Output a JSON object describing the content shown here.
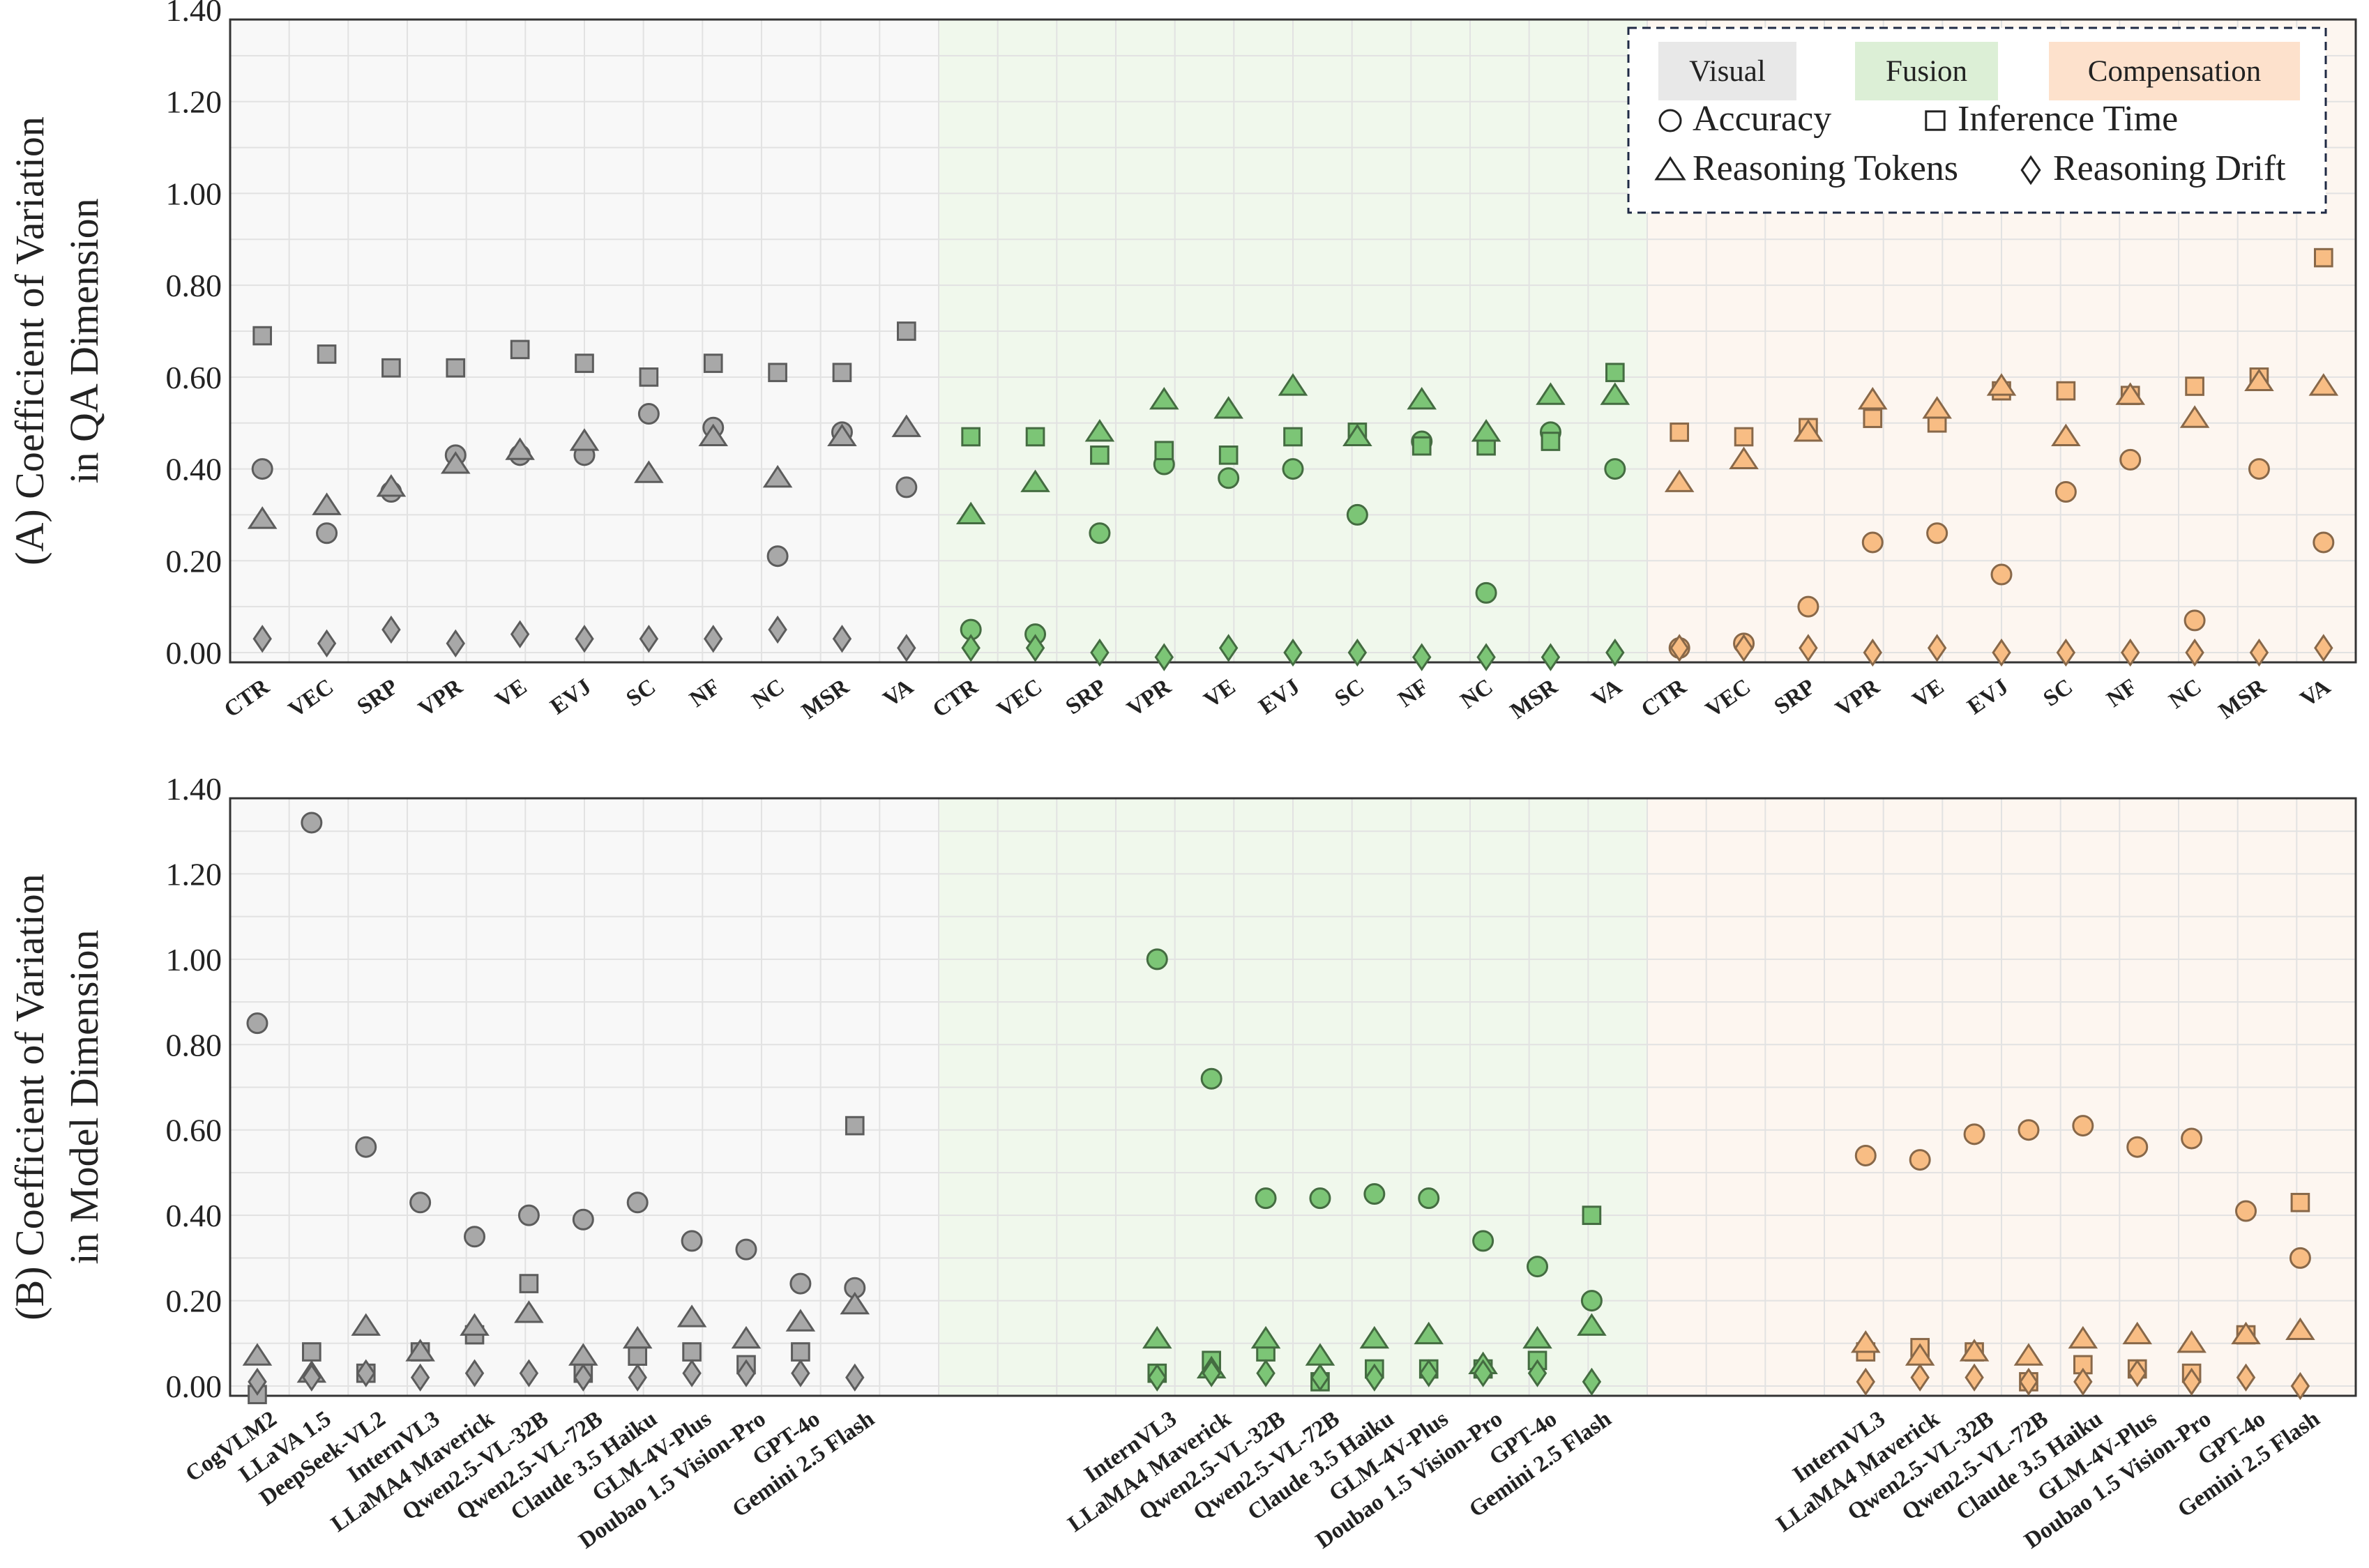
{
  "chart_data": [
    {
      "type": "scatter",
      "panel": "A",
      "ylabel_line1": "(A) Coefficient of Variation",
      "ylabel_line2": "in QA Dimension",
      "ylim": [
        0,
        1.4
      ],
      "yticks": [
        "0.00",
        "0.20",
        "0.40",
        "0.60",
        "0.80",
        "1.00",
        "1.20",
        "1.40"
      ],
      "groups": [
        {
          "name": "Visual",
          "color": "#a8a8a8",
          "bg": "#f8f8f8",
          "categories": [
            "CTR",
            "VEC",
            "SRP",
            "VPR",
            "VE",
            "EVJ",
            "SC",
            "NF",
            "NC",
            "MSR",
            "VA"
          ],
          "accuracy": [
            0.4,
            0.26,
            0.35,
            0.43,
            0.43,
            0.43,
            0.52,
            0.49,
            0.21,
            0.48,
            0.36
          ],
          "inference_time": [
            0.69,
            0.65,
            0.62,
            0.62,
            0.66,
            0.63,
            0.6,
            0.63,
            0.61,
            0.61,
            0.7
          ],
          "reasoning_tokens": [
            0.29,
            0.32,
            0.36,
            0.41,
            0.44,
            0.46,
            0.39,
            0.47,
            0.38,
            0.47,
            0.49
          ],
          "reasoning_drift": [
            0.03,
            0.02,
            0.05,
            0.02,
            0.04,
            0.03,
            0.03,
            0.03,
            0.05,
            0.03,
            0.01
          ]
        },
        {
          "name": "Fusion",
          "color": "#7cc576",
          "bg": "#f0f8ec",
          "categories": [
            "CTR",
            "VEC",
            "SRP",
            "VPR",
            "VE",
            "EVJ",
            "SC",
            "NF",
            "NC",
            "MSR",
            "VA"
          ],
          "accuracy": [
            0.05,
            0.04,
            0.26,
            0.41,
            0.38,
            0.4,
            0.3,
            0.46,
            0.13,
            0.48,
            0.4
          ],
          "inference_time": [
            0.47,
            0.47,
            0.43,
            0.44,
            0.43,
            0.47,
            0.48,
            0.45,
            0.45,
            0.46,
            0.61
          ],
          "reasoning_tokens": [
            0.3,
            0.37,
            0.48,
            0.55,
            0.53,
            0.58,
            0.47,
            0.55,
            0.48,
            0.56,
            0.56
          ],
          "reasoning_drift": [
            0.01,
            0.01,
            0.0,
            -0.01,
            0.01,
            0.0,
            0.0,
            -0.01,
            -0.01,
            -0.01,
            0.0
          ]
        },
        {
          "name": "Compensation",
          "color": "#f8bd84",
          "bg": "#fdf6f0",
          "categories": [
            "CTR",
            "VEC",
            "SRP",
            "VPR",
            "VE",
            "EVJ",
            "SC",
            "NF",
            "NC",
            "MSR",
            "VA"
          ],
          "accuracy": [
            0.01,
            0.02,
            0.1,
            0.24,
            0.26,
            0.17,
            0.35,
            0.42,
            0.07,
            0.4,
            0.24
          ],
          "inference_time": [
            0.48,
            0.47,
            0.49,
            0.51,
            0.5,
            0.57,
            0.57,
            0.56,
            0.58,
            0.6,
            0.86
          ],
          "reasoning_tokens": [
            0.37,
            0.42,
            0.48,
            0.55,
            0.53,
            0.58,
            0.47,
            0.56,
            0.51,
            0.59,
            0.58
          ],
          "reasoning_drift": [
            0.01,
            0.01,
            0.01,
            0.0,
            0.01,
            0.0,
            0.0,
            0.0,
            0.0,
            0.0,
            0.01
          ]
        }
      ]
    },
    {
      "type": "scatter",
      "panel": "B",
      "ylabel_line1": "(B) Coefficient of Variation",
      "ylabel_line2": "in Model Dimension",
      "ylim": [
        0,
        1.4
      ],
      "yticks": [
        "0.00",
        "0.20",
        "0.40",
        "0.60",
        "0.80",
        "1.00",
        "1.20",
        "1.40"
      ],
      "groups": [
        {
          "name": "Visual",
          "color": "#a8a8a8",
          "bg": "#f8f8f8",
          "categories": [
            "CogVLM2",
            "LLaVA 1.5",
            "DeepSeek-VL2",
            "InternVL3",
            "LLaMA4 Maverick",
            "Qwen2.5-VL-32B",
            "Qwen2.5-VL-72B",
            "Claude 3.5 Haiku",
            "GLM-4V-Plus",
            "Doubao 1.5 Vision-Pro",
            "GPT-4o",
            "Gemini 2.5 Flash"
          ],
          "accuracy": [
            0.85,
            1.32,
            0.56,
            0.43,
            0.35,
            0.4,
            0.39,
            0.43,
            0.34,
            0.32,
            0.24,
            0.23
          ],
          "inference_time": [
            -0.02,
            0.08,
            0.03,
            0.08,
            0.12,
            0.24,
            0.03,
            0.07,
            0.08,
            0.05,
            0.08,
            0.61
          ],
          "reasoning_tokens": [
            0.07,
            0.03,
            0.14,
            0.08,
            0.14,
            0.17,
            0.07,
            0.11,
            0.16,
            0.11,
            0.15,
            0.19
          ],
          "reasoning_drift": [
            0.01,
            0.02,
            0.03,
            0.02,
            0.03,
            0.03,
            0.02,
            0.02,
            0.03,
            0.03,
            0.03,
            0.02
          ]
        },
        {
          "name": "Fusion",
          "color": "#7cc576",
          "bg": "#f0f8ec",
          "categories": [
            "InternVL3",
            "LLaMA4 Maverick",
            "Qwen2.5-VL-32B",
            "Qwen2.5-VL-72B",
            "Claude 3.5 Haiku",
            "GLM-4V-Plus",
            "Doubao 1.5 Vision-Pro",
            "GPT-4o",
            "Gemini 2.5 Flash"
          ],
          "accuracy": [
            1.0,
            0.72,
            0.44,
            0.44,
            0.45,
            0.44,
            0.34,
            0.28,
            0.2
          ],
          "inference_time": [
            0.03,
            0.06,
            0.08,
            0.01,
            0.04,
            0.04,
            0.04,
            0.06,
            0.4
          ],
          "reasoning_tokens": [
            0.11,
            0.04,
            0.11,
            0.07,
            0.11,
            0.12,
            0.05,
            0.11,
            0.14
          ],
          "reasoning_drift": [
            0.02,
            0.03,
            0.03,
            0.02,
            0.02,
            0.03,
            0.03,
            0.03,
            0.01
          ]
        },
        {
          "name": "Compensation",
          "color": "#f8bd84",
          "bg": "#fdf6f0",
          "categories": [
            "InternVL3",
            "LLaMA4 Maverick",
            "Qwen2.5-VL-32B",
            "Qwen2.5-VL-72B",
            "Claude 3.5 Haiku",
            "GLM-4V-Plus",
            "Doubao 1.5 Vision-Pro",
            "GPT-4o",
            "Gemini 2.5 Flash"
          ],
          "accuracy": [
            0.54,
            0.53,
            0.59,
            0.6,
            0.61,
            0.56,
            0.58,
            0.41,
            0.3
          ],
          "inference_time": [
            0.08,
            0.09,
            0.08,
            0.01,
            0.05,
            0.04,
            0.03,
            0.12,
            0.43
          ],
          "reasoning_tokens": [
            0.1,
            0.07,
            0.08,
            0.07,
            0.11,
            0.12,
            0.1,
            0.12,
            0.13
          ],
          "reasoning_drift": [
            0.01,
            0.02,
            0.02,
            0.01,
            0.01,
            0.03,
            0.01,
            0.02,
            0.0
          ]
        }
      ]
    }
  ],
  "legend": {
    "groups": [
      "Visual",
      "Fusion",
      "Compensation"
    ],
    "metrics": [
      {
        "key": "accuracy",
        "label": "Accuracy",
        "marker": "circle"
      },
      {
        "key": "inference_time",
        "label": "Inference Time",
        "marker": "square"
      },
      {
        "key": "reasoning_tokens",
        "label": "Reasoning Tokens",
        "marker": "triangle"
      },
      {
        "key": "reasoning_drift",
        "label": "Reasoning Drift",
        "marker": "diamond"
      }
    ]
  }
}
